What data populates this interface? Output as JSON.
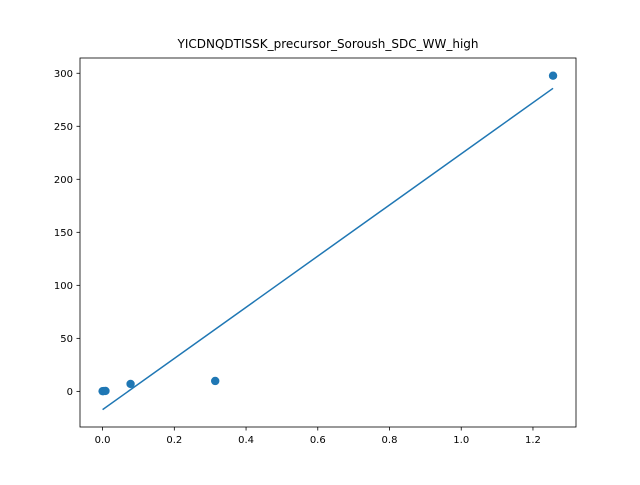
{
  "chart_data": {
    "type": "scatter",
    "title": "YICDNQDTISSK_precursor_Soroush_SDC_WW_high",
    "xlabel": "",
    "ylabel": "",
    "xlim": [
      -0.063,
      1.32
    ],
    "ylim": [
      -33.6,
      314.4
    ],
    "x_ticks": [
      0.0,
      0.2,
      0.4,
      0.6,
      0.8,
      1.0,
      1.2
    ],
    "x_tick_labels": [
      "0.0",
      "0.2",
      "0.4",
      "0.6",
      "0.8",
      "1.0",
      "1.2"
    ],
    "y_ticks": [
      0,
      50,
      100,
      150,
      200,
      250,
      300
    ],
    "y_tick_labels": [
      "0",
      "50",
      "100",
      "150",
      "200",
      "250",
      "300"
    ],
    "grid": false,
    "series": [
      {
        "kind": "points",
        "color": "#1f77b4",
        "points": [
          {
            "x": 0.0,
            "y": 0.2
          },
          {
            "x": 0.003,
            "y": 0.3
          },
          {
            "x": 0.008,
            "y": 0.4
          },
          {
            "x": 0.078,
            "y": 7.0
          },
          {
            "x": 0.314,
            "y": 9.8
          },
          {
            "x": 1.256,
            "y": 297.7
          }
        ]
      },
      {
        "kind": "fit-line",
        "color": "#1f77b4",
        "points": [
          {
            "x": 0.0,
            "y": -17.2
          },
          {
            "x": 1.256,
            "y": 285.8
          }
        ]
      }
    ]
  }
}
